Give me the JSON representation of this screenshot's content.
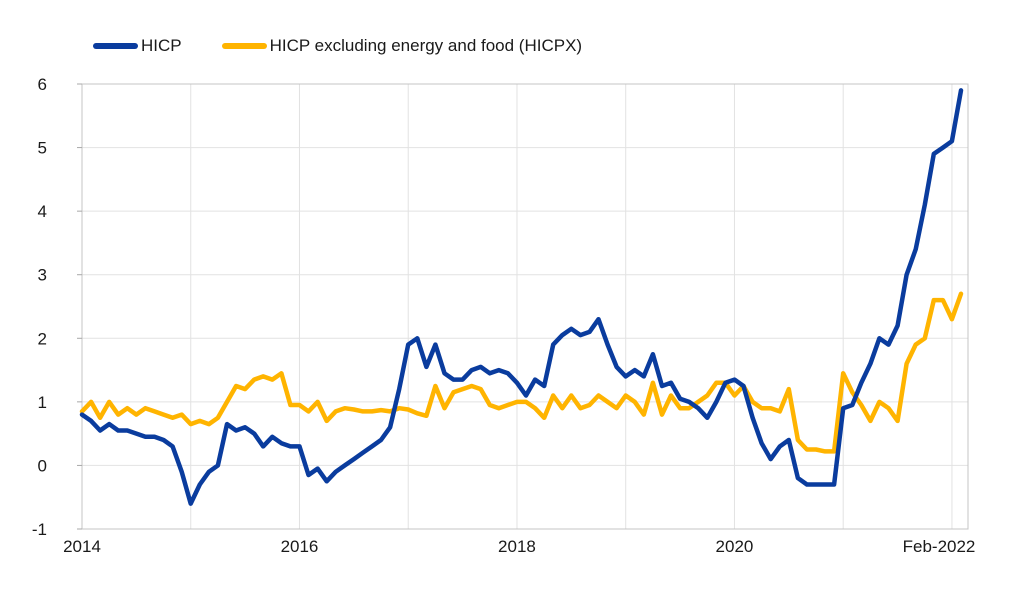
{
  "chart_data": {
    "type": "line",
    "title": "",
    "frequency": "monthly",
    "x_start": "2014-01",
    "x_end": "2022-02",
    "xlabel": "",
    "ylabel": "",
    "ylim": [
      -1,
      6
    ],
    "y_ticks": [
      -1,
      0,
      1,
      2,
      3,
      4,
      5,
      6
    ],
    "grid": true,
    "legend_position": "top-left",
    "x_tick_labels": [
      {
        "label": "2014",
        "month": 0
      },
      {
        "label": "2016",
        "month": 24
      },
      {
        "label": "2018",
        "month": 48
      },
      {
        "label": "2020",
        "month": 72
      },
      {
        "label": "Feb-2022",
        "month": 97
      }
    ],
    "year_gridline_months": [
      0,
      12,
      24,
      36,
      48,
      60,
      72,
      84,
      96
    ],
    "colors": {
      "grid": "#e2e2e2",
      "border": "#c4c4c4",
      "tick": "#a8a8a8",
      "text": "#1a1a1a"
    },
    "series": [
      {
        "name": "HICP excluding energy and food (HICPX)",
        "color": "#ffb400",
        "values": [
          0.85,
          1.0,
          0.75,
          1.0,
          0.8,
          0.9,
          0.8,
          0.9,
          0.85,
          0.8,
          0.75,
          0.8,
          0.65,
          0.7,
          0.65,
          0.75,
          1.0,
          1.25,
          1.2,
          1.35,
          1.4,
          1.35,
          1.45,
          0.95,
          0.95,
          0.85,
          1.0,
          0.7,
          0.85,
          0.9,
          0.88,
          0.85,
          0.85,
          0.87,
          0.85,
          0.9,
          0.88,
          0.82,
          0.78,
          1.25,
          0.9,
          1.15,
          1.2,
          1.25,
          1.2,
          0.95,
          0.9,
          0.95,
          1.0,
          1.0,
          0.9,
          0.75,
          1.1,
          0.9,
          1.1,
          0.9,
          0.95,
          1.1,
          1.0,
          0.9,
          1.1,
          1.0,
          0.8,
          1.3,
          0.8,
          1.1,
          0.9,
          0.9,
          1.0,
          1.1,
          1.3,
          1.3,
          1.1,
          1.25,
          1.0,
          0.9,
          0.9,
          0.85,
          1.2,
          0.4,
          0.25,
          0.25,
          0.22,
          0.22,
          1.45,
          1.15,
          0.95,
          0.7,
          1.0,
          0.9,
          0.7,
          1.6,
          1.9,
          2.0,
          2.6,
          2.6,
          2.3,
          2.7
        ]
      },
      {
        "name": "HICP",
        "color": "#0a3c9e",
        "values": [
          0.8,
          0.7,
          0.55,
          0.65,
          0.55,
          0.55,
          0.5,
          0.45,
          0.45,
          0.4,
          0.3,
          -0.1,
          -0.6,
          -0.3,
          -0.1,
          0.0,
          0.65,
          0.55,
          0.6,
          0.5,
          0.3,
          0.45,
          0.35,
          0.3,
          0.3,
          -0.15,
          -0.05,
          -0.25,
          -0.1,
          0.0,
          0.1,
          0.2,
          0.3,
          0.4,
          0.6,
          1.2,
          1.9,
          2.0,
          1.55,
          1.9,
          1.45,
          1.35,
          1.35,
          1.5,
          1.55,
          1.45,
          1.5,
          1.45,
          1.3,
          1.1,
          1.35,
          1.25,
          1.9,
          2.05,
          2.15,
          2.05,
          2.1,
          2.3,
          1.9,
          1.55,
          1.4,
          1.5,
          1.4,
          1.75,
          1.25,
          1.3,
          1.05,
          1.0,
          0.9,
          0.75,
          1.0,
          1.3,
          1.35,
          1.25,
          0.75,
          0.35,
          0.1,
          0.3,
          0.4,
          -0.2,
          -0.3,
          -0.3,
          -0.3,
          -0.3,
          0.9,
          0.95,
          1.3,
          1.6,
          2.0,
          1.9,
          2.2,
          3.0,
          3.4,
          4.1,
          4.9,
          5.0,
          5.1,
          5.9
        ]
      }
    ]
  },
  "legend": {
    "hicp_label": "HICP",
    "hicpx_label": "HICP excluding energy and food (HICPX)"
  }
}
